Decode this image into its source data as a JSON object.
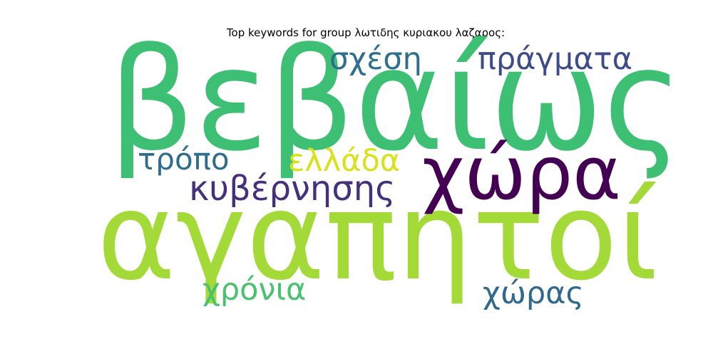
{
  "title": "Top keywords for group λωτιδης κυριακου λαζαρος:",
  "words": [
    {
      "key": "bebaios",
      "text": "βεβαίως",
      "color": "#3dbf74"
    },
    {
      "key": "agapitoi",
      "text": "αγαπητοί",
      "color": "#a3da37"
    },
    {
      "key": "chora",
      "text": "χώρα",
      "color": "#440154"
    },
    {
      "key": "pragmata",
      "text": "πράγματα",
      "color": "#3d4c89"
    },
    {
      "key": "schesi",
      "text": "σχέση",
      "color": "#2e6f8e"
    },
    {
      "key": "tropo",
      "text": "τρόπο",
      "color": "#2e6d8e"
    },
    {
      "key": "ellada",
      "text": "ελλάδα",
      "color": "#d8e219"
    },
    {
      "key": "kyvernisis",
      "text": "κυβέρνησης",
      "color": "#46307e"
    },
    {
      "key": "chronia",
      "text": "χρόνια",
      "color": "#4ac16d"
    },
    {
      "key": "choras",
      "text": "χώρας",
      "color": "#31688e"
    }
  ]
}
